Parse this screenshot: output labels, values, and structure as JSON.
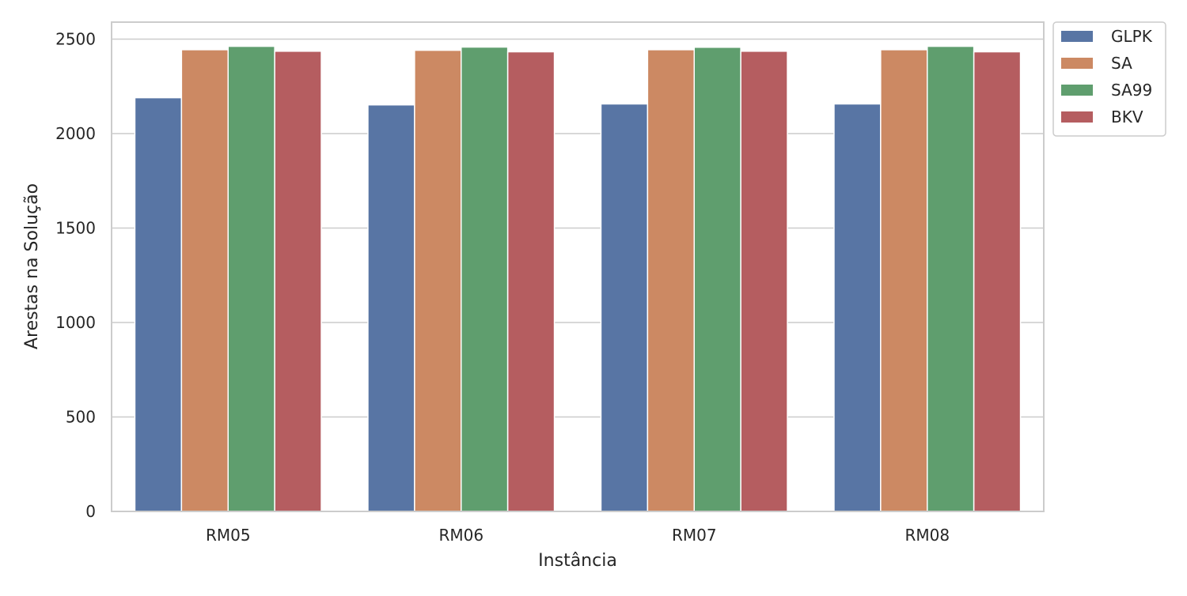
{
  "chart_data": {
    "type": "bar",
    "title": "",
    "xlabel": "Instância",
    "ylabel": "Arestas na Solução",
    "categories": [
      "RM05",
      "RM06",
      "RM07",
      "RM08"
    ],
    "series": [
      {
        "name": "GLPK",
        "color": "#5875a4",
        "values": [
          2190,
          2152,
          2157,
          2157
        ]
      },
      {
        "name": "SA",
        "color": "#cc8963",
        "values": [
          2444,
          2441,
          2444,
          2444
        ]
      },
      {
        "name": "SA99",
        "color": "#5f9e6e",
        "values": [
          2462,
          2458,
          2457,
          2462
        ]
      },
      {
        "name": "BKV",
        "color": "#b55d60",
        "values": [
          2436,
          2433,
          2436,
          2433
        ]
      }
    ],
    "ylim": [
      0,
      2590
    ],
    "yticks": [
      0,
      500,
      1000,
      1500,
      2000,
      2500
    ],
    "grid": true,
    "legend_position": "outside-top-right"
  }
}
